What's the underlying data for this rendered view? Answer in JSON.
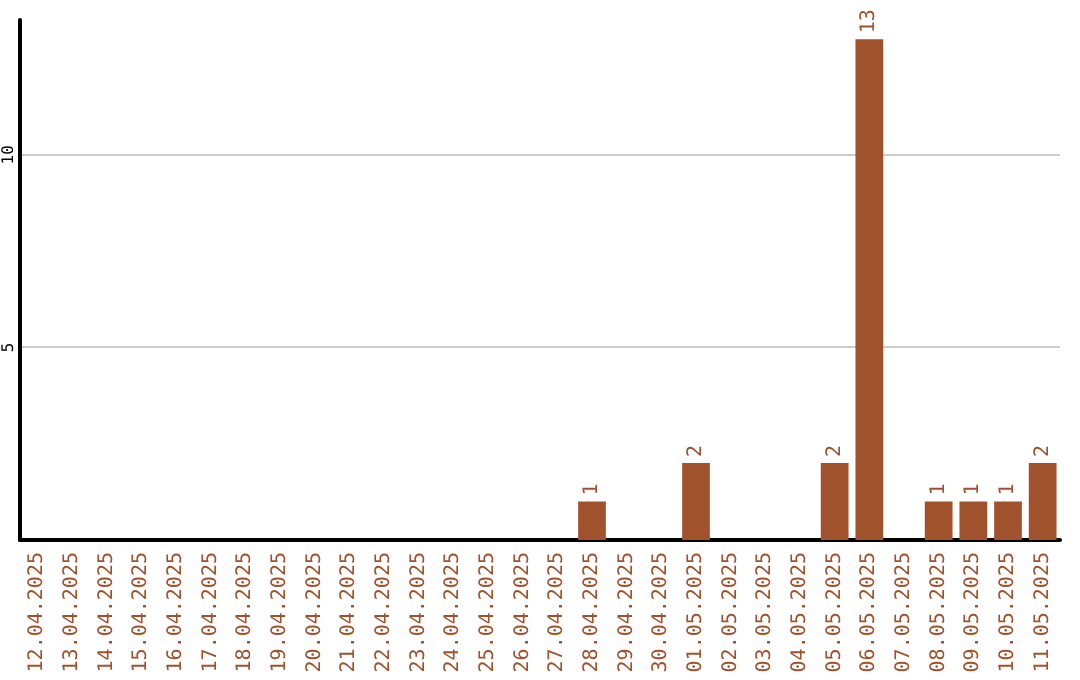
{
  "chart_data": {
    "type": "bar",
    "categories": [
      "12.04.2025",
      "13.04.2025",
      "14.04.2025",
      "15.04.2025",
      "16.04.2025",
      "17.04.2025",
      "18.04.2025",
      "19.04.2025",
      "20.04.2025",
      "21.04.2025",
      "22.04.2025",
      "23.04.2025",
      "24.04.2025",
      "25.04.2025",
      "26.04.2025",
      "27.04.2025",
      "28.04.2025",
      "29.04.2025",
      "30.04.2025",
      "01.05.2025",
      "02.05.2025",
      "03.05.2025",
      "04.05.2025",
      "05.05.2025",
      "06.05.2025",
      "07.05.2025",
      "08.05.2025",
      "09.05.2025",
      "10.05.2025",
      "11.05.2025"
    ],
    "values": [
      0,
      0,
      0,
      0,
      0,
      0,
      0,
      0,
      0,
      0,
      0,
      0,
      0,
      0,
      0,
      0,
      1,
      0,
      0,
      2,
      0,
      0,
      0,
      2,
      13,
      0,
      1,
      1,
      1,
      2
    ],
    "value_labels": [
      null,
      null,
      null,
      null,
      null,
      null,
      null,
      null,
      null,
      null,
      null,
      null,
      null,
      null,
      null,
      null,
      "1",
      null,
      null,
      "2",
      null,
      null,
      null,
      "2",
      "13",
      null,
      "1",
      "1",
      "1",
      "2"
    ],
    "color": "#a0522d",
    "ylim": [
      0,
      13.5
    ],
    "yticks": [
      5,
      10
    ],
    "grid": "y"
  }
}
